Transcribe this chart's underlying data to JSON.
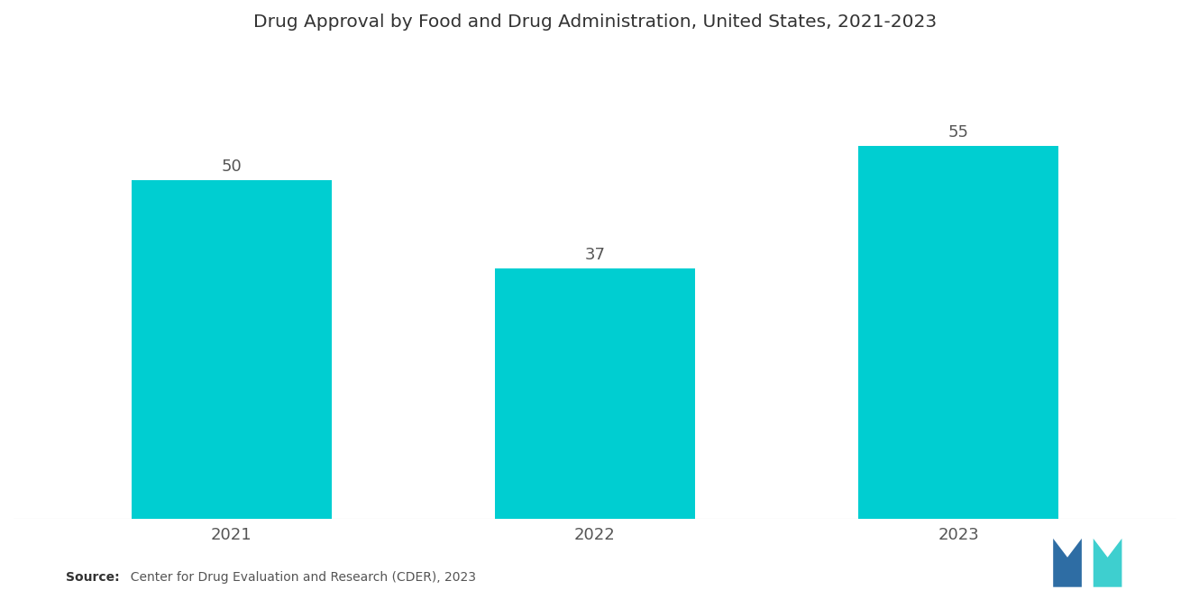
{
  "title": "Drug Approval by Food and Drug Administration, United States, 2021-2023",
  "categories": [
    "2021",
    "2022",
    "2023"
  ],
  "values": [
    50,
    37,
    55
  ],
  "bar_color": "#00CED1",
  "background_color": "#ffffff",
  "title_fontsize": 14.5,
  "tick_fontsize": 13,
  "value_fontsize": 13,
  "source_bold": "Source:",
  "source_rest": "  Center for Drug Evaluation and Research (CDER), 2023",
  "ylim": [
    0,
    68
  ],
  "bar_width": 0.55,
  "logo_blue": "#2e6da4",
  "logo_teal": "#3ecfcf"
}
